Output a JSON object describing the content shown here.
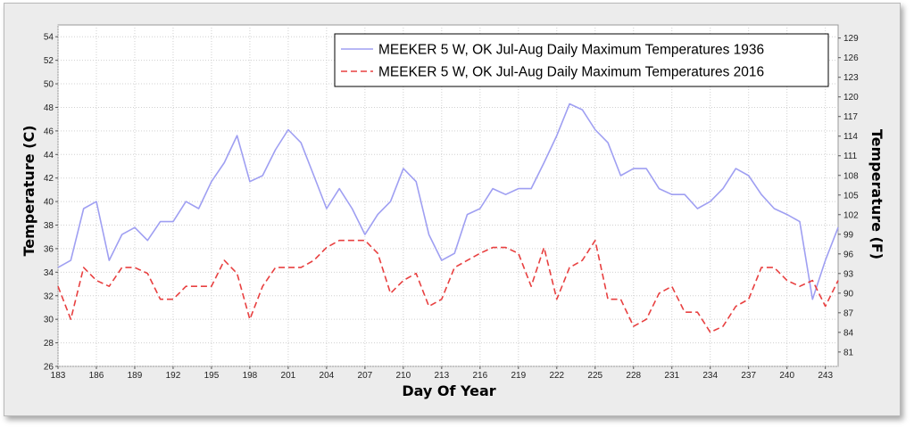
{
  "chart_data": {
    "type": "line",
    "xlabel": "Day Of Year",
    "ylabel": "Temperature (C)",
    "y2label": "Temperature (F)",
    "xlim": [
      183,
      244
    ],
    "ylim": [
      26,
      55
    ],
    "y2lim": [
      78.8,
      131
    ],
    "x_ticks": [
      "183",
      "186",
      "189",
      "192",
      "195",
      "198",
      "201",
      "204",
      "207",
      "210",
      "213",
      "216",
      "219",
      "222",
      "225",
      "228",
      "231",
      "234",
      "237",
      "240",
      "243"
    ],
    "y_ticks": [
      "26",
      "28",
      "30",
      "32",
      "34",
      "36",
      "38",
      "40",
      "42",
      "44",
      "46",
      "48",
      "50",
      "52",
      "54"
    ],
    "y2_ticks": [
      "81",
      "84",
      "87",
      "90",
      "93",
      "96",
      "99",
      "102",
      "105",
      "108",
      "111",
      "114",
      "117",
      "120",
      "123",
      "126",
      "129"
    ],
    "grid": true,
    "legend_position": "top-right",
    "x": [
      183,
      184,
      185,
      186,
      187,
      188,
      189,
      190,
      191,
      192,
      193,
      194,
      195,
      196,
      197,
      198,
      199,
      200,
      201,
      202,
      203,
      204,
      205,
      206,
      207,
      208,
      209,
      210,
      211,
      212,
      213,
      214,
      215,
      216,
      217,
      218,
      219,
      220,
      221,
      222,
      223,
      224,
      225,
      226,
      227,
      228,
      229,
      230,
      231,
      232,
      233,
      234,
      235,
      236,
      237,
      238,
      239,
      240,
      241,
      242,
      243,
      244
    ],
    "series": [
      {
        "name": "MEEKER 5 W, OK  Jul-Aug  Daily Maximum Temperatures 1936",
        "color": "#9f9ff2",
        "dash": "solid",
        "values": [
          34.4,
          35.0,
          39.4,
          40.0,
          35.0,
          37.2,
          37.8,
          36.7,
          38.3,
          38.3,
          40.0,
          39.4,
          41.7,
          43.3,
          45.6,
          41.7,
          42.2,
          44.4,
          46.1,
          45.0,
          42.2,
          39.4,
          41.1,
          39.4,
          37.2,
          38.9,
          40.0,
          42.8,
          41.7,
          37.2,
          35.0,
          35.6,
          38.9,
          39.4,
          41.1,
          40.6,
          41.1,
          41.1,
          43.3,
          45.6,
          48.3,
          47.8,
          46.1,
          45.0,
          42.2,
          42.8,
          42.8,
          41.1,
          40.6,
          40.6,
          39.4,
          40.0,
          41.1,
          42.8,
          42.2,
          40.6,
          39.4,
          38.9,
          38.3,
          31.7,
          35.0,
          37.8
        ]
      },
      {
        "name": "MEEKER 5 W, OK  Jul-Aug  Daily Maximum Temperatures 2016",
        "color": "#e84040",
        "dash": "dashed",
        "values": [
          32.8,
          30.0,
          34.4,
          33.3,
          32.8,
          34.4,
          34.4,
          33.9,
          31.7,
          31.7,
          32.8,
          32.8,
          32.8,
          35.0,
          33.9,
          30.0,
          32.8,
          34.4,
          34.4,
          34.4,
          35.0,
          36.1,
          36.7,
          36.7,
          36.7,
          35.6,
          32.2,
          33.3,
          33.9,
          31.1,
          31.7,
          34.4,
          35.0,
          35.6,
          36.1,
          36.1,
          35.6,
          32.8,
          36.1,
          31.7,
          34.4,
          35.0,
          36.7,
          31.7,
          31.7,
          29.4,
          30.0,
          32.2,
          32.8,
          30.6,
          30.6,
          28.9,
          29.4,
          31.1,
          31.7,
          34.4,
          34.4,
          33.3,
          32.8,
          33.3,
          31.1,
          33.3
        ]
      }
    ]
  }
}
